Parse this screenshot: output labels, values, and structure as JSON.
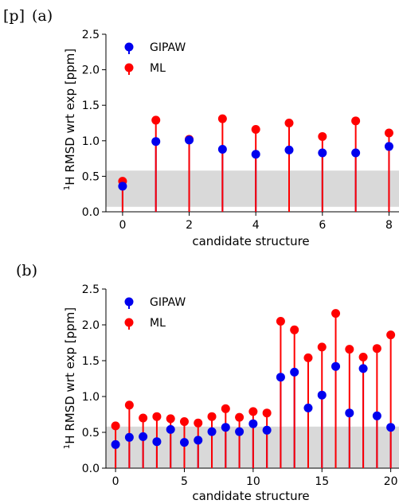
{
  "colors": {
    "gipaw": "#0000ee",
    "ml": "#ff0000",
    "band": "#d9d9d9",
    "axis": "#000000"
  },
  "figure": {
    "prefix": "[p]"
  },
  "chart_data": [
    {
      "panel_label": "(a)",
      "type": "scatter",
      "marker_style": "stem",
      "xlabel": "candidate structure",
      "ylabel_prefix": "1",
      "ylabel": "H RMSD wrt exp [ppm]",
      "xlim": [
        -0.5,
        8.3
      ],
      "ylim": [
        0,
        2.5
      ],
      "xticks": [
        0,
        2,
        4,
        6,
        8
      ],
      "xtick_labels": [
        "0",
        "2",
        "4",
        "6",
        "8"
      ],
      "yticks": [
        0,
        0.5,
        1.0,
        1.5,
        2.0,
        2.5
      ],
      "ytick_labels": [
        "0.0",
        "0.5",
        "1.0",
        "1.5",
        "2.0",
        "2.5"
      ],
      "band": {
        "y0": 0.07,
        "y1": 0.58
      },
      "legend": {
        "position": "top-left"
      },
      "grid": false,
      "x": [
        0,
        1,
        2,
        3,
        4,
        5,
        6,
        7,
        8
      ],
      "series": [
        {
          "name": "GIPAW",
          "values": [
            0.36,
            0.99,
            1.01,
            0.88,
            0.81,
            0.87,
            0.83,
            0.83,
            0.92
          ]
        },
        {
          "name": "ML",
          "values": [
            0.43,
            1.29,
            1.02,
            1.31,
            1.16,
            1.25,
            1.06,
            1.28,
            1.11
          ]
        }
      ]
    },
    {
      "panel_label": "(b)",
      "type": "scatter",
      "marker_style": "stem",
      "xlabel": "candidate structure",
      "ylabel_prefix": "1",
      "ylabel": "H RMSD wrt exp [ppm]",
      "xlim": [
        -0.7,
        20.6
      ],
      "ylim": [
        0,
        2.5
      ],
      "xticks": [
        0,
        5,
        10,
        15,
        20
      ],
      "xtick_labels": [
        "0",
        "5",
        "10",
        "15",
        "20"
      ],
      "yticks": [
        0,
        0.5,
        1.0,
        1.5,
        2.0,
        2.5
      ],
      "ytick_labels": [
        "0.0",
        "0.5",
        "1.0",
        "1.5",
        "2.0",
        "2.5"
      ],
      "band": {
        "y0": 0.0,
        "y1": 0.58
      },
      "legend": {
        "position": "top-left"
      },
      "grid": false,
      "x": [
        0,
        1,
        2,
        3,
        4,
        5,
        6,
        7,
        8,
        9,
        10,
        11,
        12,
        13,
        14,
        15,
        16,
        17,
        18,
        19,
        20
      ],
      "series": [
        {
          "name": "GIPAW",
          "values": [
            0.33,
            0.43,
            0.44,
            0.37,
            0.54,
            0.36,
            0.39,
            0.51,
            0.57,
            0.51,
            0.62,
            0.53,
            1.27,
            1.34,
            0.84,
            1.02,
            1.42,
            0.77,
            1.39,
            0.73,
            0.57
          ]
        },
        {
          "name": "ML",
          "values": [
            0.59,
            0.88,
            0.7,
            0.72,
            0.69,
            0.65,
            0.63,
            0.72,
            0.83,
            0.71,
            0.79,
            0.77,
            2.05,
            1.93,
            1.54,
            1.69,
            2.16,
            1.66,
            1.55,
            1.67,
            1.86
          ]
        }
      ]
    }
  ]
}
